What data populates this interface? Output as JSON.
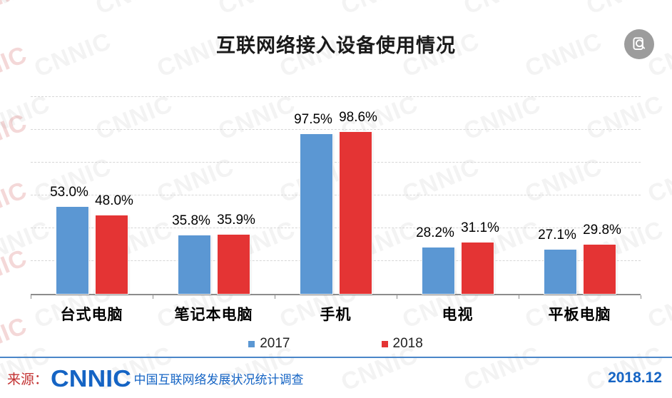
{
  "watermark": {
    "text": "CNNIC"
  },
  "toolbar": {
    "preview_button": "zoom-preview"
  },
  "chart_data": {
    "type": "bar",
    "title": "互联网络接入设备使用情况",
    "categories": [
      "台式电脑",
      "笔记本电脑",
      "手机",
      "电视",
      "平板电脑"
    ],
    "series": [
      {
        "name": "2017",
        "color": "#5B97D3",
        "values": [
          53.0,
          35.8,
          97.5,
          28.2,
          27.1
        ],
        "labels": [
          "53.0%",
          "35.8%",
          "97.5%",
          "28.2%",
          "27.1%"
        ]
      },
      {
        "name": "2018",
        "color": "#E43434",
        "values": [
          48.0,
          35.9,
          98.6,
          31.1,
          29.8
        ],
        "labels": [
          "48.0%",
          "35.9%",
          "98.6%",
          "31.1%",
          "29.8%"
        ]
      }
    ],
    "value_suffix": "%",
    "ylim": [
      0,
      120
    ],
    "grid_step": 20,
    "grid": true,
    "xlabel": "",
    "ylabel": "",
    "legend_position": "bottom",
    "legend_entries": [
      "2017",
      "2018"
    ]
  },
  "footer": {
    "source_label": "来源：",
    "logo": "CNNIC",
    "source_text": "中国互联网络发展状况统计调查",
    "date": "2018.12"
  },
  "colors": {
    "series_2017": "#5B97D3",
    "series_2018": "#E43434",
    "footer_accent": "#1564C4",
    "source_red": "#C33333",
    "divider_blue": "#4A86C8",
    "axis": "#8C8C8C",
    "gridline": "#D6D6D6"
  }
}
